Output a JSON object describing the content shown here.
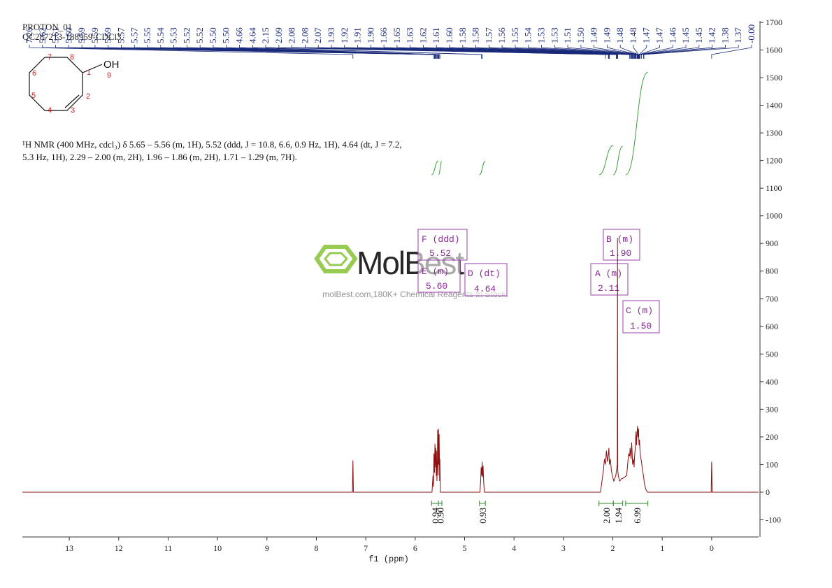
{
  "chart_data": {
    "type": "line",
    "title": "PROTON_01",
    "subtitle": "QC287213-188959-CDCl3",
    "description": "¹H NMR (400 MHz, cdcl₃) δ 5.65 – 5.56 (m, 1H), 5.52 (ddd, J = 10.8, 6.6, 0.9 Hz, 1H), 4.64 (dt, J = 7.2, 5.3 Hz, 1H), 2.29 – 2.00 (m, 2H), 1.96 – 1.86 (m, 2H), 1.71 – 1.29 (m, 7H).",
    "xlabel": "f1 (ppm)",
    "color": "#8b1010",
    "x": [
      13.95,
      7.27,
      7.26,
      7.25,
      5.66,
      5.64,
      5.63,
      5.62,
      5.61,
      5.6,
      5.59,
      5.585,
      5.575,
      5.57,
      5.56,
      5.55,
      5.545,
      5.535,
      5.53,
      5.52,
      5.515,
      5.505,
      5.5,
      5.49,
      4.69,
      4.675,
      4.665,
      4.655,
      4.645,
      4.635,
      4.625,
      4.615,
      4.6,
      2.25,
      2.22,
      2.19,
      2.17,
      2.15,
      2.13,
      2.11,
      2.09,
      2.08,
      2.07,
      2.05,
      2.03,
      2.01,
      1.98,
      1.94,
      1.925,
      1.91,
      1.905,
      1.9,
      1.89,
      1.86,
      1.82,
      1.8,
      1.72,
      1.7,
      1.68,
      1.66,
      1.65,
      1.63,
      1.62,
      1.61,
      1.6,
      1.58,
      1.57,
      1.56,
      1.55,
      1.54,
      1.53,
      1.52,
      1.51,
      1.5,
      1.49,
      1.48,
      1.47,
      1.46,
      1.45,
      1.44,
      1.42,
      1.4,
      1.38,
      1.36,
      1.33,
      1.3,
      0.01,
      0.0,
      -0.01,
      -0.95
    ],
    "values": [
      0,
      0,
      115,
      0,
      0,
      60,
      20,
      140,
      70,
      175,
      90,
      160,
      60,
      150,
      40,
      120,
      225,
      60,
      230,
      100,
      210,
      40,
      120,
      0,
      0,
      40,
      90,
      60,
      110,
      55,
      95,
      40,
      0,
      0,
      40,
      80,
      120,
      100,
      150,
      110,
      140,
      160,
      100,
      120,
      80,
      60,
      40,
      60,
      80,
      100,
      920,
      80,
      60,
      40,
      50,
      50,
      60,
      100,
      140,
      130,
      160,
      120,
      180,
      150,
      100,
      120,
      90,
      130,
      150,
      190,
      220,
      170,
      210,
      240,
      200,
      230,
      170,
      190,
      150,
      130,
      110,
      80,
      60,
      30,
      10,
      0,
      0,
      110,
      0,
      0
    ],
    "xlim": [
      13.95,
      -0.95
    ],
    "ylim": [
      -162,
      1700
    ],
    "xticks": [
      13,
      12,
      11,
      10,
      9,
      8,
      7,
      6,
      5,
      4,
      3,
      2,
      1,
      0
    ],
    "yticks": [
      -100,
      0,
      100,
      200,
      300,
      400,
      500,
      600,
      700,
      800,
      900,
      1000,
      1100,
      1200,
      1300,
      1400,
      1500,
      1600,
      1700
    ],
    "peaks": [
      {
        "value": 7.26,
        "label": "7.26"
      },
      {
        "value": 5.62,
        "label": "5.62"
      },
      {
        "value": 5.61,
        "label": "5.61"
      },
      {
        "value": 5.6,
        "label": "5.60"
      },
      {
        "value": 5.59,
        "label": "5.59"
      },
      {
        "value": 5.59,
        "label": "5.59"
      },
      {
        "value": 5.59,
        "label": "5.59"
      },
      {
        "value": 5.57,
        "label": "5.57"
      },
      {
        "value": 5.57,
        "label": "5.57"
      },
      {
        "value": 5.55,
        "label": "5.55"
      },
      {
        "value": 5.54,
        "label": "5.54"
      },
      {
        "value": 5.53,
        "label": "5.53"
      },
      {
        "value": 5.52,
        "label": "5.52"
      },
      {
        "value": 5.52,
        "label": "5.52"
      },
      {
        "value": 5.5,
        "label": "5.50"
      },
      {
        "value": 5.5,
        "label": "5.50"
      },
      {
        "value": 4.66,
        "label": "4.66"
      },
      {
        "value": 4.64,
        "label": "4.64"
      },
      {
        "value": 2.15,
        "label": "2.15"
      },
      {
        "value": 2.09,
        "label": "2.09"
      },
      {
        "value": 2.08,
        "label": "2.08"
      },
      {
        "value": 2.08,
        "label": "2.08"
      },
      {
        "value": 2.07,
        "label": "2.07"
      },
      {
        "value": 1.93,
        "label": "1.93"
      },
      {
        "value": 1.92,
        "label": "1.92"
      },
      {
        "value": 1.91,
        "label": "1.91"
      },
      {
        "value": 1.9,
        "label": "1.90"
      },
      {
        "value": 1.66,
        "label": "1.66"
      },
      {
        "value": 1.65,
        "label": "1.65"
      },
      {
        "value": 1.63,
        "label": "1.63"
      },
      {
        "value": 1.62,
        "label": "1.62"
      },
      {
        "value": 1.61,
        "label": "1.61"
      },
      {
        "value": 1.6,
        "label": "1.60"
      },
      {
        "value": 1.58,
        "label": "1.58"
      },
      {
        "value": 1.58,
        "label": "1.58"
      },
      {
        "value": 1.57,
        "label": "1.57"
      },
      {
        "value": 1.56,
        "label": "1.56"
      },
      {
        "value": 1.55,
        "label": "1.55"
      },
      {
        "value": 1.54,
        "label": "1.54"
      },
      {
        "value": 1.53,
        "label": "1.53"
      },
      {
        "value": 1.53,
        "label": "1.53"
      },
      {
        "value": 1.51,
        "label": "1.51"
      },
      {
        "value": 1.5,
        "label": "1.50"
      },
      {
        "value": 1.49,
        "label": "1.49"
      },
      {
        "value": 1.49,
        "label": "1.49"
      },
      {
        "value": 1.48,
        "label": "1.48"
      },
      {
        "value": 1.48,
        "label": "1.48"
      },
      {
        "value": 1.47,
        "label": "1.47"
      },
      {
        "value": 1.47,
        "label": "1.47"
      },
      {
        "value": 1.46,
        "label": "1.46"
      },
      {
        "value": 1.45,
        "label": "1.45"
      },
      {
        "value": 1.45,
        "label": "1.45"
      },
      {
        "value": 1.42,
        "label": "1.42"
      },
      {
        "value": 1.38,
        "label": "1.38"
      },
      {
        "value": 1.37,
        "label": "1.37"
      },
      {
        "value": 0,
        "label": "-0.00"
      }
    ],
    "integrals": {
      "ranges": [
        [
          5.67,
          5.53
        ],
        [
          5.53,
          5.46
        ],
        [
          4.7,
          4.58
        ],
        [
          2.28,
          1.99
        ],
        [
          1.99,
          1.8
        ],
        [
          1.74,
          1.29
        ]
      ],
      "values": [
        0.94,
        0.9,
        0.93,
        2.0,
        1.94,
        6.99
      ],
      "value_labels": [
        "0.94",
        "0.90",
        "0.93",
        "2.00",
        "1.94",
        "6.99"
      ]
    },
    "multiplets": [
      {
        "name": "F (ddd)",
        "shift": "5.52"
      },
      {
        "name": "E (m)",
        "shift": "5.60"
      },
      {
        "name": "D (dt)",
        "shift": "4.64"
      },
      {
        "name": "A (m)",
        "shift": "2.11"
      },
      {
        "name": "B (m)",
        "shift": "1.90"
      },
      {
        "name": "C (m)",
        "shift": "1.50"
      }
    ]
  },
  "molecule": {
    "atom_numbers": [
      "1",
      "2",
      "3",
      "4",
      "5",
      "6",
      "7",
      "8",
      "9"
    ],
    "substituent": "OH"
  },
  "watermark": {
    "name": "MolBest",
    "tagline": "molBest.com,180K+ Chemical Reagents In Stock."
  }
}
